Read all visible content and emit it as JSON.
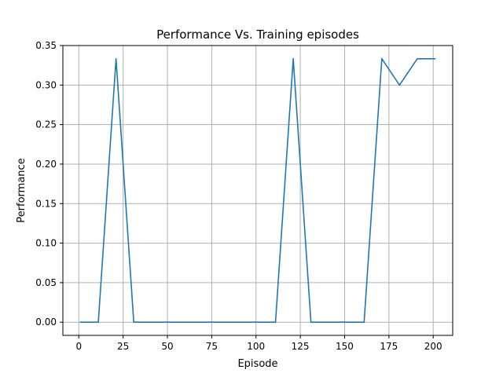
{
  "chart_data": {
    "type": "line",
    "title": "Performance Vs. Training episodes",
    "xlabel": "Episode",
    "ylabel": "Performance",
    "xlim": [
      -9,
      211
    ],
    "ylim": [
      -0.0167,
      0.35
    ],
    "xticks": [
      0,
      25,
      50,
      75,
      100,
      125,
      150,
      175,
      200
    ],
    "xtick_labels": [
      "0",
      "25",
      "50",
      "75",
      "100",
      "125",
      "150",
      "175",
      "200"
    ],
    "yticks": [
      0,
      0.05,
      0.1,
      0.15,
      0.2,
      0.25,
      0.3,
      0.35
    ],
    "ytick_labels": [
      "0.00",
      "0.05",
      "0.10",
      "0.15",
      "0.20",
      "0.25",
      "0.30",
      "0.35"
    ],
    "grid": true,
    "series": [
      {
        "color": "#1f77b4",
        "x": [
          1,
          11,
          21,
          31,
          41,
          51,
          61,
          71,
          81,
          91,
          101,
          111,
          121,
          131,
          141,
          151,
          161,
          171,
          181,
          191,
          201
        ],
        "y": [
          0,
          0,
          0.3333,
          0,
          0,
          0,
          0,
          0,
          0,
          0,
          0,
          0,
          0.3333,
          0,
          0,
          0,
          0,
          0.3333,
          0.3,
          0.3333,
          0.3333
        ]
      }
    ]
  }
}
